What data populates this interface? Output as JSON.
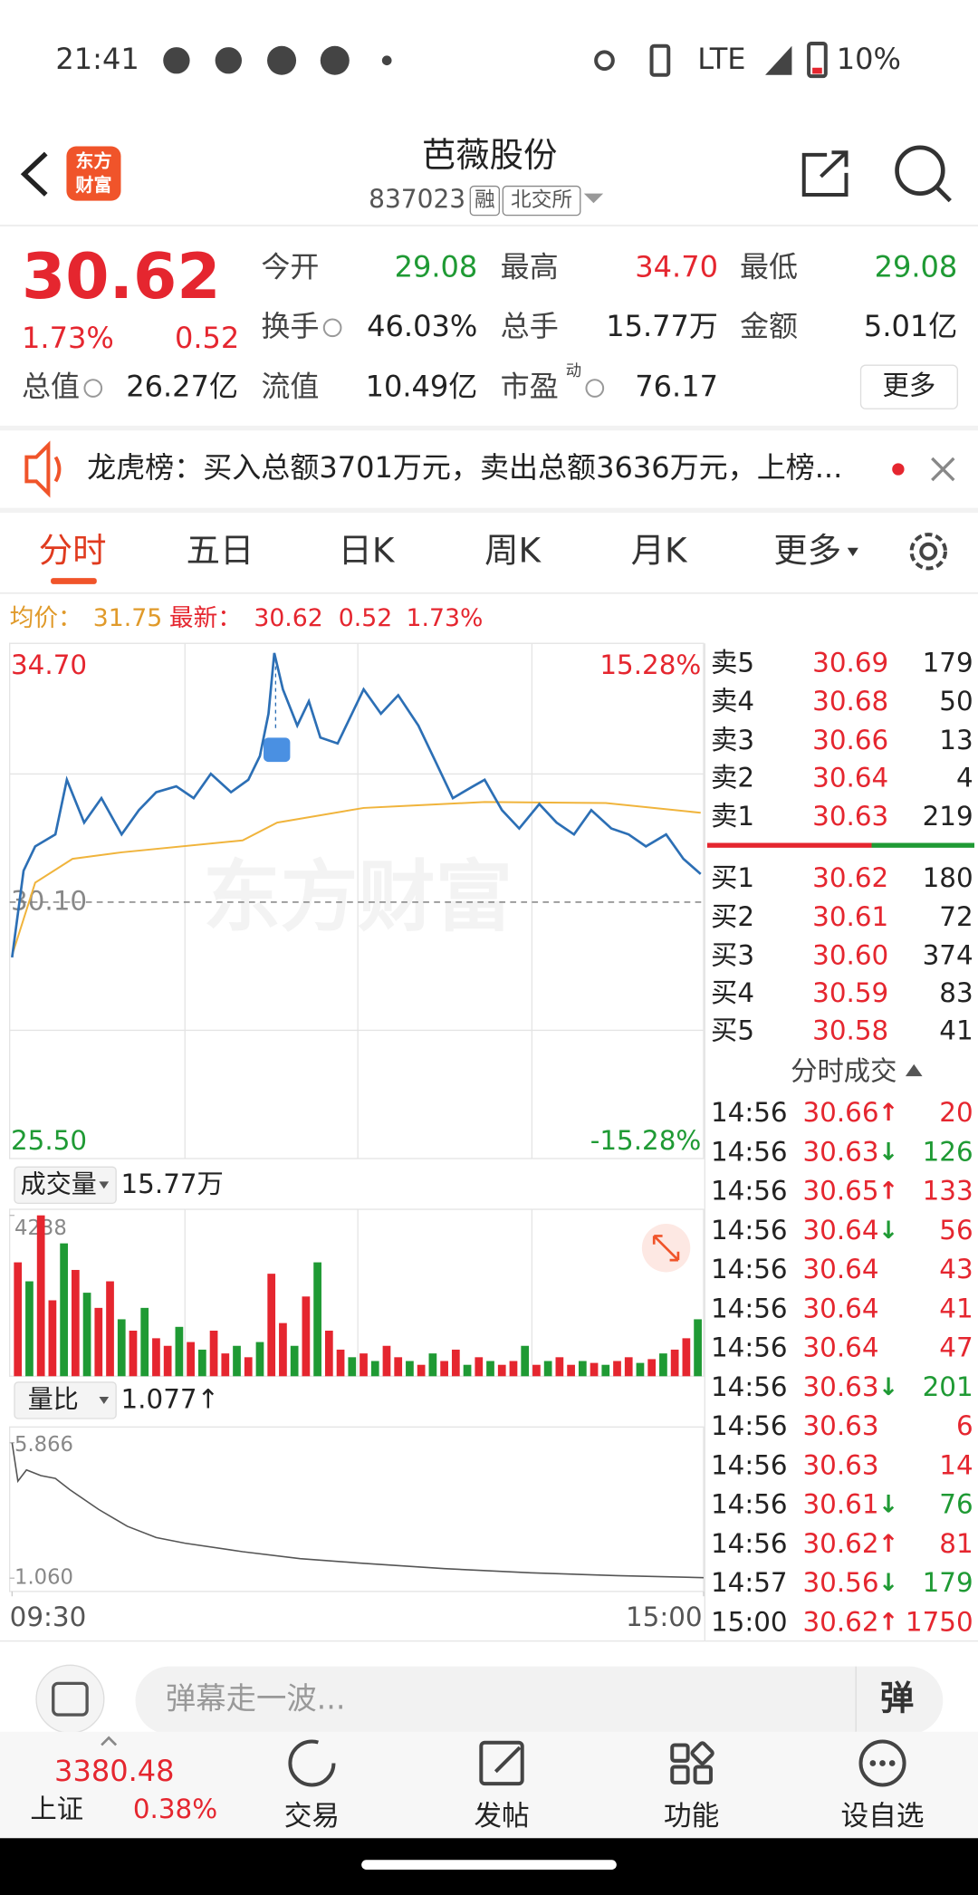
{
  "status_bar": {
    "time": "21:41",
    "network": "LTE",
    "battery": "10%"
  },
  "header": {
    "logo": [
      "东方",
      "财富"
    ],
    "title": "芭薇股份",
    "code": "837023",
    "tags": [
      "融",
      "北交所"
    ]
  },
  "quote": {
    "price": "30.62",
    "change_percent": "1.73%",
    "change": "0.52",
    "color": "#e5262f",
    "fields": [
      {
        "label": "今开",
        "value": "29.08",
        "color": "#1f9a34"
      },
      {
        "label": "最高",
        "value": "34.70",
        "color": "#e5262f"
      },
      {
        "label": "最低",
        "value": "29.08",
        "color": "#1f9a34"
      },
      {
        "label": "换手",
        "value": "46.03%",
        "color": "#222222"
      },
      {
        "label": "总手",
        "value": "15.77万",
        "color": "#222222"
      },
      {
        "label": "金额",
        "value": "5.01亿",
        "color": "#222222"
      },
      {
        "label": "总值",
        "value": "26.27亿",
        "color": "#222222"
      },
      {
        "label": "流值",
        "value": "10.49亿",
        "color": "#222222"
      },
      {
        "label": "市盈",
        "sup": "动",
        "value": "76.17",
        "color": "#222222"
      }
    ],
    "more": "更多"
  },
  "notice": {
    "text": "龙虎榜：买入总额3701万元，卖出总额3636万元，上榜..."
  },
  "tabs": {
    "items": [
      "分时",
      "五日",
      "日K",
      "周K",
      "月K",
      "更多"
    ],
    "active": 0
  },
  "summary": {
    "average_label": "均价：",
    "average": "31.75",
    "latest_label": "最新：",
    "latest": "30.62",
    "change": "0.52",
    "change_percent": "1.73%"
  },
  "intraday": {
    "watermark": "东方财富",
    "xlim": [
      0,
      240
    ],
    "xticks": [
      {
        "value": 0,
        "label": "09:30"
      },
      {
        "value": 240,
        "label": "15:00"
      }
    ],
    "price": {
      "color": "#2c6fb5",
      "ylim": [
        25.5,
        34.7
      ],
      "yticks": [
        {
          "value": 34.7,
          "label": "34.70"
        },
        {
          "value": 30.1,
          "label": "30.10"
        },
        {
          "value": 25.5,
          "label": "25.50"
        }
      ],
      "y2lim": [
        -15.28,
        15.28
      ],
      "y2ticks": [
        {
          "value": 15.28,
          "label": "15.28%"
        },
        {
          "value": -15.28,
          "label": "-15.28%"
        }
      ],
      "x": [
        0,
        4,
        8,
        15,
        19,
        25,
        31,
        38,
        44,
        50,
        57,
        63,
        69,
        76,
        82,
        86,
        89,
        91,
        94,
        99,
        103,
        107,
        113,
        122,
        128,
        134,
        141,
        147,
        153,
        160,
        164,
        170,
        176,
        183,
        189,
        195,
        201,
        208,
        214,
        220,
        227,
        233,
        239
      ],
      "values": [
        29.08,
        30.68,
        31.13,
        31.35,
        32.36,
        31.57,
        32.02,
        31.35,
        31.8,
        32.13,
        32.24,
        32.02,
        32.47,
        32.13,
        32.36,
        32.8,
        33.58,
        34.7,
        34.03,
        33.36,
        33.81,
        33.14,
        33.03,
        34.03,
        33.58,
        33.92,
        33.36,
        32.69,
        32.02,
        32.24,
        32.36,
        31.8,
        31.46,
        31.91,
        31.57,
        31.35,
        31.8,
        31.46,
        31.35,
        31.13,
        31.35,
        30.9,
        30.62
      ]
    },
    "average": {
      "color": "#f0b43c",
      "x": [
        0,
        8,
        21,
        38,
        80,
        92,
        122,
        164,
        206,
        239
      ],
      "values": [
        29.12,
        30.46,
        30.9,
        31.02,
        31.24,
        31.57,
        31.84,
        31.95,
        31.93,
        31.75
      ]
    },
    "volume": {
      "label": "成交量",
      "total": "15.77万",
      "ylim": [
        0,
        4238
      ],
      "yticks": [
        4238
      ],
      "values": [
        3000,
        2500,
        4238,
        2000,
        3500,
        2800,
        2200,
        1800,
        2500,
        1500,
        1200,
        1800,
        1000,
        800,
        1300,
        900,
        700,
        1200,
        600,
        800,
        500,
        900,
        2700,
        1400,
        800,
        2100,
        3000,
        1200,
        700,
        500,
        600,
        400,
        800,
        500,
        400,
        300,
        600,
        400,
        700,
        300,
        500,
        400,
        300,
        400,
        800,
        300,
        400,
        500,
        300,
        400,
        350,
        300,
        400,
        500,
        350,
        450,
        600,
        700,
        1000,
        1500
      ],
      "colors": [
        "#e5262f",
        "#1f9a34",
        "#e5262f",
        "#e5262f",
        "#1f9a34",
        "#e5262f",
        "#1f9a34",
        "#e5262f",
        "#e5262f",
        "#1f9a34",
        "#e5262f",
        "#1f9a34",
        "#e5262f",
        "#e5262f",
        "#1f9a34",
        "#e5262f",
        "#1f9a34",
        "#e5262f",
        "#e5262f",
        "#1f9a34",
        "#e5262f",
        "#1f9a34",
        "#e5262f",
        "#e5262f",
        "#1f9a34",
        "#e5262f",
        "#1f9a34",
        "#e5262f",
        "#e5262f",
        "#1f9a34",
        "#e5262f",
        "#1f9a34",
        "#e5262f",
        "#e5262f",
        "#1f9a34",
        "#e5262f",
        "#1f9a34",
        "#e5262f",
        "#e5262f",
        "#1f9a34",
        "#e5262f",
        "#1f9a34",
        "#e5262f",
        "#e5262f",
        "#1f9a34",
        "#e5262f",
        "#1f9a34",
        "#e5262f",
        "#e5262f",
        "#1f9a34",
        "#e5262f",
        "#1f9a34",
        "#e5262f",
        "#e5262f",
        "#1f9a34",
        "#e5262f",
        "#1f9a34",
        "#e5262f",
        "#e5262f",
        "#1f9a34"
      ]
    },
    "ratio": {
      "label": "量比",
      "current": "1.077↑",
      "color": "#555555",
      "ylim": [
        1.06,
        5.866
      ],
      "yticks": [
        5.866,
        {
          "value": 1.06,
          "label": "1.060"
        }
      ],
      "x": [
        0,
        2,
        5,
        10,
        15,
        20,
        30,
        40,
        50,
        60,
        80,
        100,
        120,
        150,
        180,
        210,
        240
      ],
      "values": [
        5.866,
        4.5,
        4.9,
        4.7,
        4.6,
        4.2,
        3.5,
        2.9,
        2.5,
        2.3,
        2.0,
        1.75,
        1.6,
        1.4,
        1.25,
        1.15,
        1.077
      ]
    }
  },
  "order_book": {
    "asks": [
      {
        "label": "卖5",
        "price": "30.69",
        "volume": "179"
      },
      {
        "label": "卖4",
        "price": "30.68",
        "volume": "50"
      },
      {
        "label": "卖3",
        "price": "30.66",
        "volume": "13"
      },
      {
        "label": "卖2",
        "price": "30.64",
        "volume": "4"
      },
      {
        "label": "卖1",
        "price": "30.63",
        "volume": "219"
      }
    ],
    "bids": [
      {
        "label": "买1",
        "price": "30.62",
        "volume": "180"
      },
      {
        "label": "买2",
        "price": "30.61",
        "volume": "72"
      },
      {
        "label": "买3",
        "price": "30.60",
        "volume": "374"
      },
      {
        "label": "买4",
        "price": "30.59",
        "volume": "83"
      },
      {
        "label": "买5",
        "price": "30.58",
        "volume": "41"
      }
    ]
  },
  "trades": {
    "title": "分时成交",
    "rows": [
      {
        "time": "14:56",
        "price": "30.66",
        "arrow": "↑",
        "arrow_color": "#e5262f",
        "volume": "20",
        "color": "#e5262f"
      },
      {
        "time": "14:56",
        "price": "30.63",
        "arrow": "↓",
        "arrow_color": "#1f9a34",
        "volume": "126",
        "color": "#1f9a34"
      },
      {
        "time": "14:56",
        "price": "30.65",
        "arrow": "↑",
        "arrow_color": "#e5262f",
        "volume": "133",
        "color": "#e5262f"
      },
      {
        "time": "14:56",
        "price": "30.64",
        "arrow": "↓",
        "arrow_color": "#1f9a34",
        "volume": "56",
        "color": "#e5262f"
      },
      {
        "time": "14:56",
        "price": "30.64",
        "volume": "43",
        "color": "#e5262f"
      },
      {
        "time": "14:56",
        "price": "30.64",
        "volume": "41",
        "color": "#e5262f"
      },
      {
        "time": "14:56",
        "price": "30.64",
        "volume": "47",
        "color": "#e5262f"
      },
      {
        "time": "14:56",
        "price": "30.63",
        "arrow": "↓",
        "arrow_color": "#1f9a34",
        "volume": "201",
        "color": "#1f9a34"
      },
      {
        "time": "14:56",
        "price": "30.63",
        "volume": "6",
        "color": "#e5262f"
      },
      {
        "time": "14:56",
        "price": "30.63",
        "volume": "14",
        "color": "#e5262f"
      },
      {
        "time": "14:56",
        "price": "30.61",
        "arrow": "↓",
        "arrow_color": "#1f9a34",
        "volume": "76",
        "color": "#1f9a34"
      },
      {
        "time": "14:56",
        "price": "30.62",
        "arrow": "↑",
        "arrow_color": "#e5262f",
        "volume": "81",
        "color": "#e5262f"
      },
      {
        "time": "14:57",
        "price": "30.56",
        "arrow": "↓",
        "arrow_color": "#1f9a34",
        "volume": "179",
        "color": "#1f9a34"
      },
      {
        "time": "15:00",
        "price": "30.62",
        "arrow": "↑",
        "arrow_color": "#e5262f",
        "volume": "1750",
        "color": "#e5262f"
      }
    ]
  },
  "comment_bar": {
    "placeholder": "弹幕走一波...",
    "button": "弹"
  },
  "bottom_nav": {
    "index_value": "3380.48",
    "index_name": "上证",
    "index_change": "0.38%",
    "items": [
      "交易",
      "发帖",
      "功能",
      "设自选"
    ]
  }
}
